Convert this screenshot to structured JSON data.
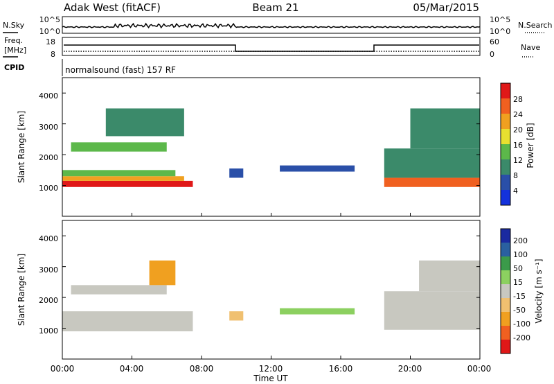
{
  "header": {
    "site": "Adak West (fitACF)",
    "beam": "Beam 21",
    "date": "05/Mar/2015"
  },
  "strips": {
    "nsky_label": "N.Sky",
    "nsky_ticks": [
      "10^5",
      "10^0"
    ],
    "nsearch_label": "N.Search",
    "nsearch_ticks": [
      "10^5",
      "10^0"
    ],
    "freq_label_1": "Freq.",
    "freq_label_2": "[MHz]",
    "freq_ticks": [
      "18",
      "8"
    ],
    "nave_label": "Nave",
    "nave_ticks": [
      "60",
      "0"
    ],
    "cpid_label": "CPID",
    "cpid_text": "normalsound (fast) 157 RF"
  },
  "time_axis": {
    "ticks": [
      "00:00",
      "04:00",
      "08:00",
      "12:00",
      "16:00",
      "20:00",
      "00:00"
    ],
    "label": "Time UT"
  },
  "range_axis": {
    "label": "Slant Range [km]",
    "ticks": [
      "1000",
      "2000",
      "3000",
      "4000"
    ]
  },
  "power_scale": {
    "label": "Power [dB]",
    "ticks": [
      "4",
      "8",
      "12",
      "16",
      "20",
      "24",
      "28"
    ],
    "colors": [
      "#1432dc",
      "#2a4fa8",
      "#3b8a6a",
      "#5cb84a",
      "#e8e030",
      "#f0a020",
      "#f06020",
      "#e01818"
    ]
  },
  "velocity_scale": {
    "label": "Velocity [m s⁻¹]",
    "ticks": [
      "-200",
      "-100",
      "-50",
      "-15",
      "15",
      "50",
      "100",
      "200"
    ],
    "colors": [
      "#e01818",
      "#f06020",
      "#f0a020",
      "#f0c070",
      "#c8c8c0",
      "#8cd060",
      "#3b9a4a",
      "#2a60a0",
      "#1a2aa0"
    ]
  },
  "chart_data": [
    {
      "type": "heatmap",
      "title": "Power",
      "xlabel": "Time UT",
      "ylabel": "Slant Range [km]",
      "xlim": [
        0,
        24
      ],
      "ylim": [
        0,
        4500
      ],
      "colorbar": {
        "label": "Power [dB]",
        "range": [
          0,
          32
        ]
      },
      "regions": [
        {
          "t0": 0.0,
          "t1": 7.5,
          "r0": 950,
          "r1": 1150,
          "value": 28
        },
        {
          "t0": 0.0,
          "t1": 7.0,
          "r0": 1150,
          "r1": 1300,
          "value": 20
        },
        {
          "t0": 0.0,
          "t1": 6.5,
          "r0": 1300,
          "r1": 1500,
          "value": 12
        },
        {
          "t0": 0.5,
          "t1": 6.0,
          "r0": 2100,
          "r1": 2400,
          "value": 14
        },
        {
          "t0": 2.5,
          "t1": 7.0,
          "r0": 2600,
          "r1": 3500,
          "value": 10
        },
        {
          "t0": 9.6,
          "t1": 10.4,
          "r0": 1250,
          "r1": 1550,
          "value": 6
        },
        {
          "t0": 12.5,
          "t1": 16.8,
          "r0": 1450,
          "r1": 1650,
          "value": 6
        },
        {
          "t0": 18.5,
          "t1": 24.0,
          "r0": 950,
          "r1": 1250,
          "value": 24
        },
        {
          "t0": 18.5,
          "t1": 24.0,
          "r0": 1250,
          "r1": 2200,
          "value": 10
        },
        {
          "t0": 20.0,
          "t1": 24.0,
          "r0": 2200,
          "r1": 3500,
          "value": 8
        }
      ]
    },
    {
      "type": "heatmap",
      "title": "Velocity",
      "xlabel": "Time UT",
      "ylabel": "Slant Range [km]",
      "xlim": [
        0,
        24
      ],
      "ylim": [
        0,
        4500
      ],
      "colorbar": {
        "label": "Velocity [m s⁻¹]",
        "range": [
          -250,
          250
        ]
      },
      "regions": [
        {
          "t0": 0.0,
          "t1": 7.5,
          "r0": 900,
          "r1": 1550,
          "value": 0
        },
        {
          "t0": 0.5,
          "t1": 6.0,
          "r0": 2100,
          "r1": 2400,
          "value": 0
        },
        {
          "t0": 5.0,
          "t1": 6.5,
          "r0": 2400,
          "r1": 3200,
          "value": -60
        },
        {
          "t0": 9.6,
          "t1": 10.4,
          "r0": 1250,
          "r1": 1550,
          "value": -30
        },
        {
          "t0": 12.5,
          "t1": 16.8,
          "r0": 1450,
          "r1": 1650,
          "value": 40
        },
        {
          "t0": 18.5,
          "t1": 24.0,
          "r0": 950,
          "r1": 2200,
          "value": 0
        },
        {
          "t0": 20.5,
          "t1": 24.0,
          "r0": 2200,
          "r1": 3200,
          "value": 10
        }
      ]
    }
  ]
}
